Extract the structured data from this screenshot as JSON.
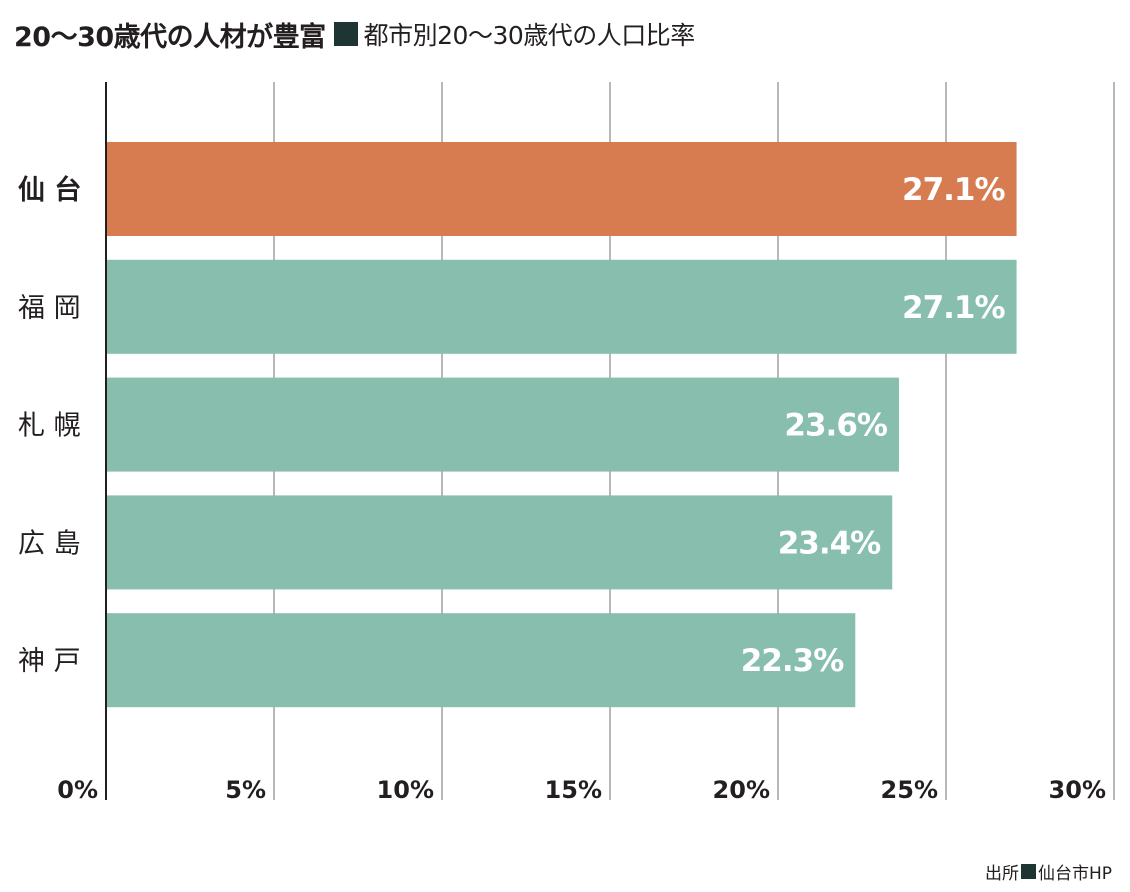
{
  "title": "20〜30歳代の人材が豊富",
  "subtitle": "都市別20〜30歳代の人口比率",
  "source": {
    "prefix": "出所",
    "name": "仙台市HP"
  },
  "colors": {
    "highlight": "#d77b50",
    "default": "#87bead",
    "grid": "#b8b8b8",
    "axis": "#231f20",
    "square": "#1e3534"
  },
  "chart_data": {
    "type": "bar",
    "orientation": "horizontal",
    "categories": [
      "仙 台",
      "福 岡",
      "札 幌",
      "広 島",
      "神 戸"
    ],
    "values": [
      27.1,
      27.1,
      23.6,
      23.4,
      22.3
    ],
    "value_labels": [
      "27.1%",
      "27.1%",
      "23.6%",
      "23.4%",
      "22.3%"
    ],
    "highlight_index": 0,
    "xlim": [
      0,
      30
    ],
    "xticks": [
      0,
      5,
      10,
      15,
      20,
      25,
      30
    ],
    "xtick_labels": [
      "0%",
      "5%",
      "10%",
      "15%",
      "20%",
      "25%",
      "30%"
    ],
    "grid": true
  }
}
